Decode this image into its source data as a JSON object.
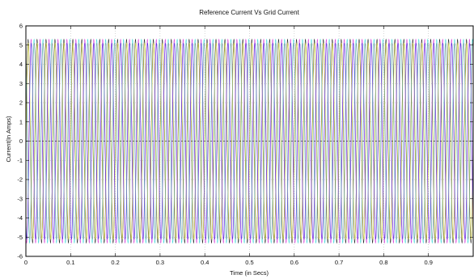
{
  "chart_data": {
    "type": "line",
    "title": "Reference Current Vs Grid Current",
    "xlabel": "Time (in Secs)",
    "ylabel": "Current(In Amps)",
    "xlim": [
      0,
      1
    ],
    "ylim": [
      -6,
      6
    ],
    "xticks": [
      "0",
      "0.1",
      "0.2",
      "0.3",
      "0.4",
      "0.5",
      "0.6",
      "0.7",
      "0.8",
      "0.9"
    ],
    "yticks": [
      "6",
      "5",
      "4",
      "3",
      "2",
      "1",
      "0",
      "-1",
      "-2",
      "-3",
      "-4",
      "-5",
      "-6"
    ],
    "grid": true,
    "frequency_hz": 50,
    "series": [
      {
        "amplitude": 5.3,
        "phase_deg": 0,
        "color": "#1f1f1f"
      },
      {
        "amplitude": 5.3,
        "phase_deg": 120,
        "color": "#d21fd2"
      },
      {
        "amplitude": 5.3,
        "phase_deg": 240,
        "color": "#1fd2d2"
      },
      {
        "amplitude": 5.1,
        "phase_deg": 8,
        "color": "#e8e830"
      },
      {
        "amplitude": 5.1,
        "phase_deg": 128,
        "color": "#2a2ae0"
      },
      {
        "amplitude": 5.1,
        "phase_deg": 248,
        "color": "#8c8c8c"
      }
    ]
  }
}
